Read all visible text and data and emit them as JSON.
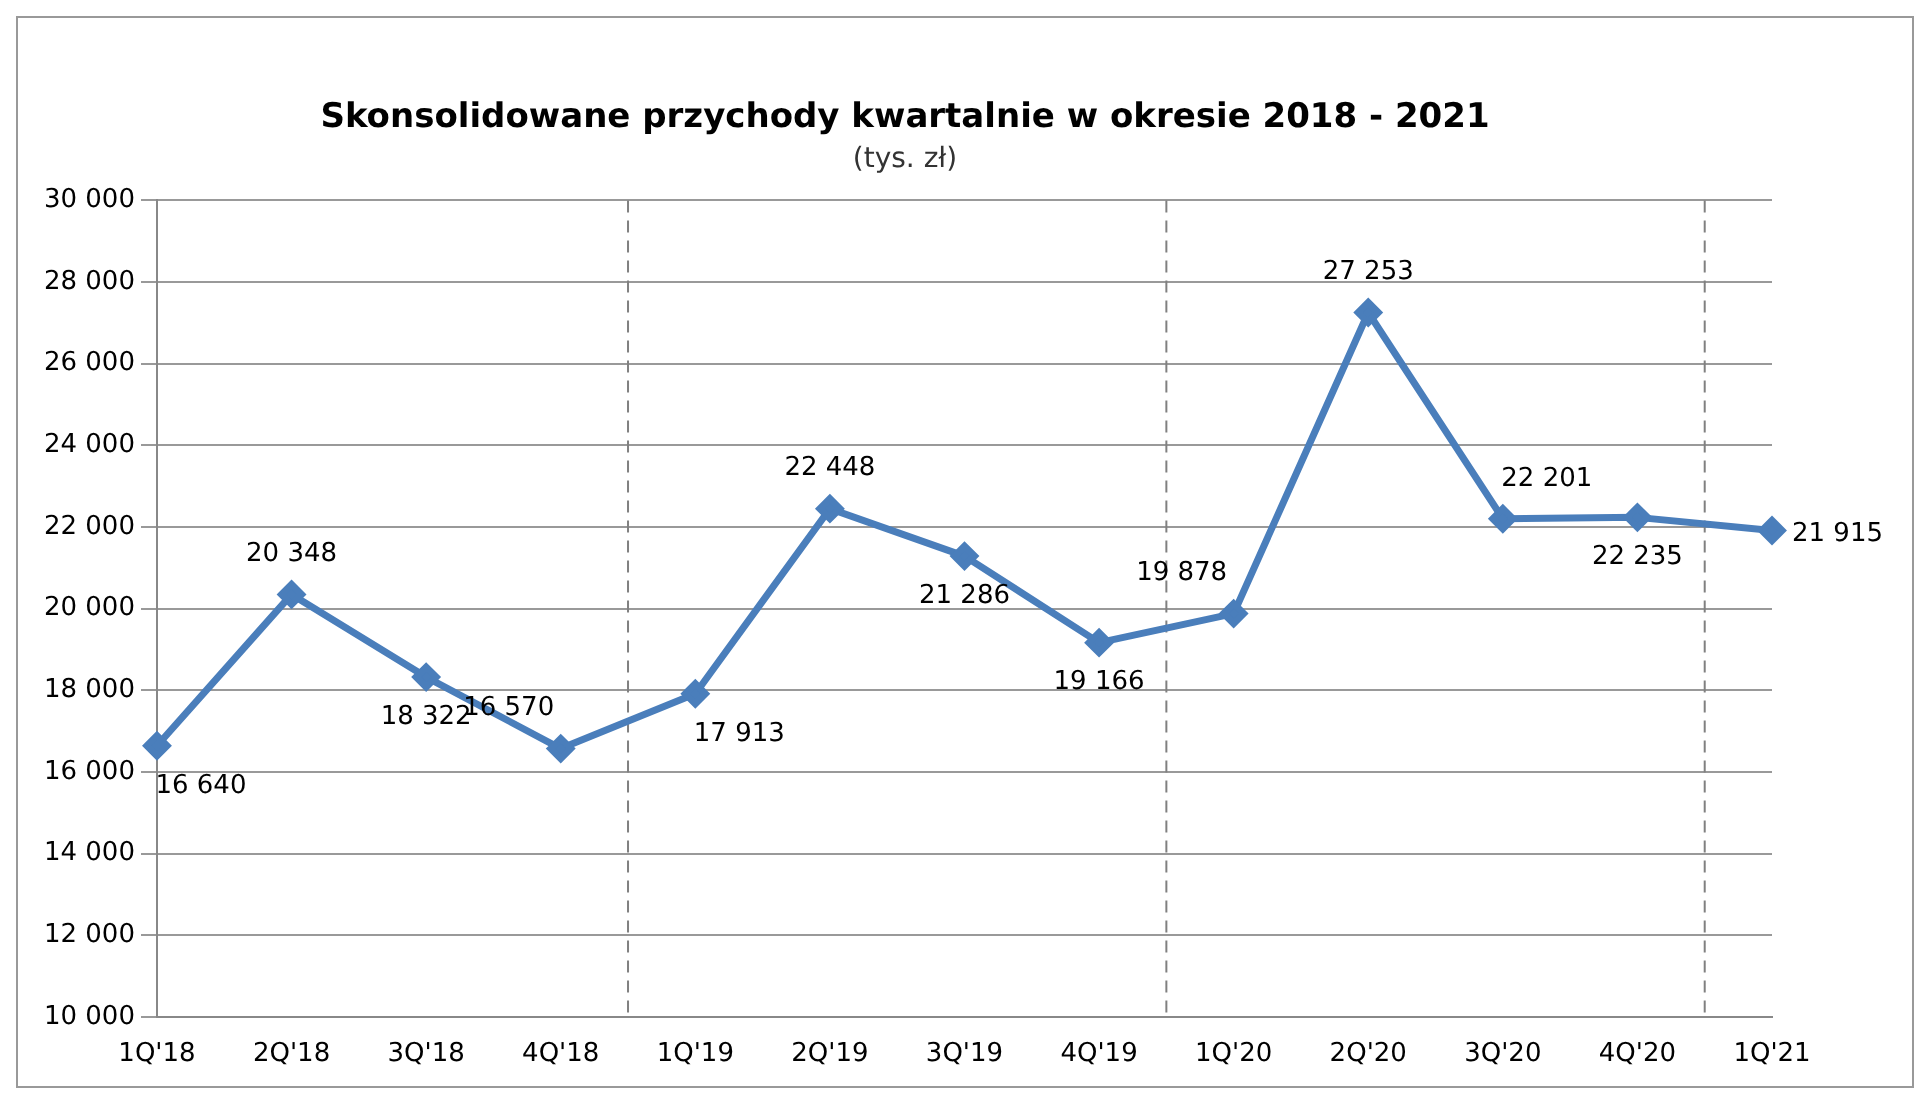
{
  "chart_data": {
    "type": "line",
    "title": "Skonsolidowane przychody kwartalnie w okresie 2018 - 2021",
    "subtitle": "(tys. zł)",
    "categories": [
      "1Q'18",
      "2Q'18",
      "3Q'18",
      "4Q'18",
      "1Q'19",
      "2Q'19",
      "3Q'19",
      "4Q'19",
      "1Q'20",
      "2Q'20",
      "3Q'20",
      "4Q'20",
      "1Q'21"
    ],
    "series": [
      {
        "color": "#4a7ebb",
        "values": [
          16640,
          20348,
          18322,
          16570,
          17913,
          22448,
          21286,
          19166,
          19878,
          27253,
          22201,
          22235,
          21915
        ],
        "value_labels": [
          "16 640",
          "20 348",
          "18 322",
          "16 570",
          "17 913",
          "22 448",
          "21 286",
          "19 166",
          "19 878",
          "27 253",
          "22 201",
          "22 235",
          "21 915"
        ]
      }
    ],
    "ylim": [
      10000,
      30000
    ],
    "yticks": [
      {
        "value": 10000,
        "label": "10 000"
      },
      {
        "value": 12000,
        "label": "12 000"
      },
      {
        "value": 14000,
        "label": "14 000"
      },
      {
        "value": 16000,
        "label": "16 000"
      },
      {
        "value": 18000,
        "label": "18 000"
      },
      {
        "value": 20000,
        "label": "20 000"
      },
      {
        "value": 22000,
        "label": "22 000"
      },
      {
        "value": 24000,
        "label": "24 000"
      },
      {
        "value": 26000,
        "label": "26 000"
      },
      {
        "value": 28000,
        "label": "28 000"
      },
      {
        "value": 30000,
        "label": "30 000"
      }
    ],
    "grid": "y",
    "legend": false,
    "marker": "diamond",
    "line_style": "solid"
  }
}
